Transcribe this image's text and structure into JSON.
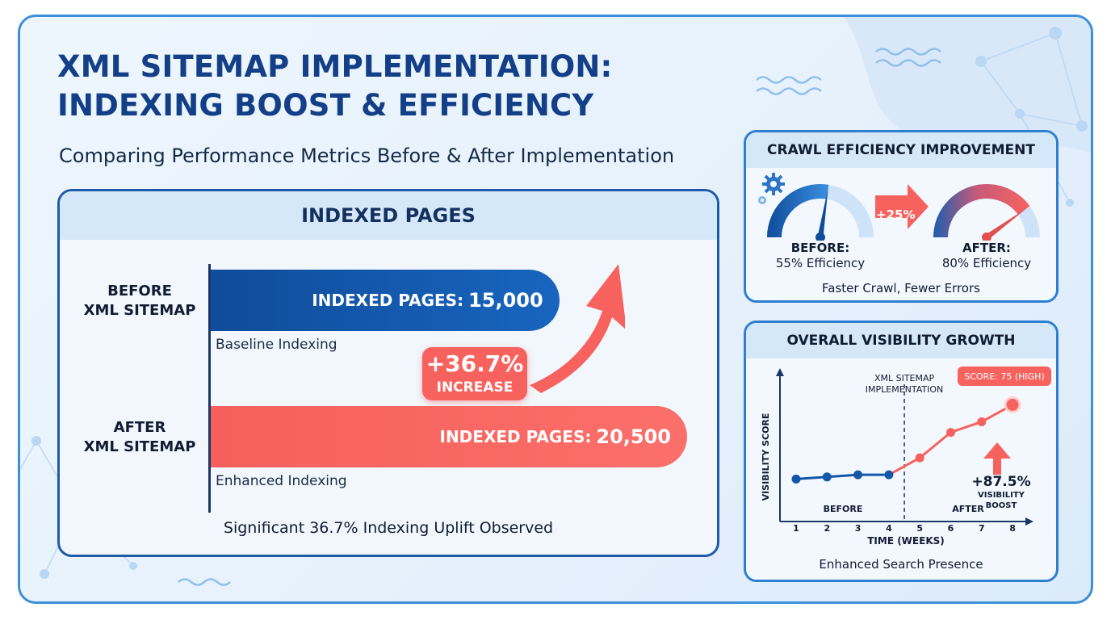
{
  "title_line1": "XML SITEMAP IMPLEMENTATION:",
  "title_line2": "INDEXING BOOST & EFFICIENCY",
  "subtitle": "Comparing Performance Metrics Before & After Implementation",
  "colors": {
    "navy": "#123f87",
    "blue": "#1865bf",
    "coral": "#f8625e",
    "panel_head": "#d5e8fa"
  },
  "indexed_panel": {
    "header": "INDEXED PAGES",
    "before": {
      "label_line1": "BEFORE",
      "label_line2": "XML SITEMAP",
      "bar_label": "INDEXED PAGES:",
      "bar_value": "15,000",
      "caption": "Baseline Indexing"
    },
    "after": {
      "label_line1": "AFTER",
      "label_line2": "XML SITEMAP",
      "bar_label": "INDEXED PAGES:",
      "bar_value": "20,500",
      "caption": "Enhanced Indexing"
    },
    "increase_pct": "+36.7%",
    "increase_label": "INCREASE",
    "footer": "Significant 36.7% Indexing Uplift Observed"
  },
  "crawl_panel": {
    "header": "CRAWL EFFICIENCY IMPROVEMENT",
    "boost": "+25%",
    "before_title": "BEFORE:",
    "before_value": "55% Efficiency",
    "after_title": "AFTER:",
    "after_value": "80% Efficiency",
    "footer": "Faster Crawl, Fewer Errors",
    "icons": [
      "gear-icon"
    ]
  },
  "visibility_panel": {
    "header": "OVERALL VISIBILITY GROWTH",
    "y_label": "VISIBILITY SCORE",
    "x_label": "TIME (WEEKS)",
    "annotation_line1": "XML SITEMAP",
    "annotation_line2": "IMPLEMENTATION",
    "score_badge": "SCORE: 75 (HIGH)",
    "before_label": "BEFORE",
    "after_label": "AFTER",
    "boost_pct": "+87.5%",
    "boost_line1": "VISIBILITY",
    "boost_line2": "BOOST",
    "footer": "Enhanced Search Presence"
  },
  "chart_data": [
    {
      "type": "bar",
      "orientation": "horizontal",
      "title": "INDEXED PAGES",
      "categories": [
        "BEFORE XML SITEMAP",
        "AFTER XML SITEMAP"
      ],
      "values": [
        15000,
        20500
      ],
      "annotations": [
        "+36.7% INCREASE"
      ]
    },
    {
      "type": "gauge",
      "title": "CRAWL EFFICIENCY IMPROVEMENT",
      "categories": [
        "BEFORE",
        "AFTER"
      ],
      "values": [
        55,
        80
      ],
      "unit": "%",
      "annotations": [
        "+25%"
      ]
    },
    {
      "type": "line",
      "title": "OVERALL VISIBILITY GROWTH",
      "xlabel": "TIME (WEEKS)",
      "ylabel": "VISIBILITY SCORE",
      "x": [
        1,
        2,
        3,
        4,
        5,
        6,
        7,
        8
      ],
      "y": [
        40,
        41,
        42,
        42,
        50,
        62,
        67,
        75
      ],
      "ylim": [
        20,
        90
      ],
      "grid": false,
      "annotations": [
        "XML SITEMAP IMPLEMENTATION at week 4.5",
        "SCORE: 75 (HIGH)",
        "+87.5% VISIBILITY BOOST"
      ]
    }
  ]
}
